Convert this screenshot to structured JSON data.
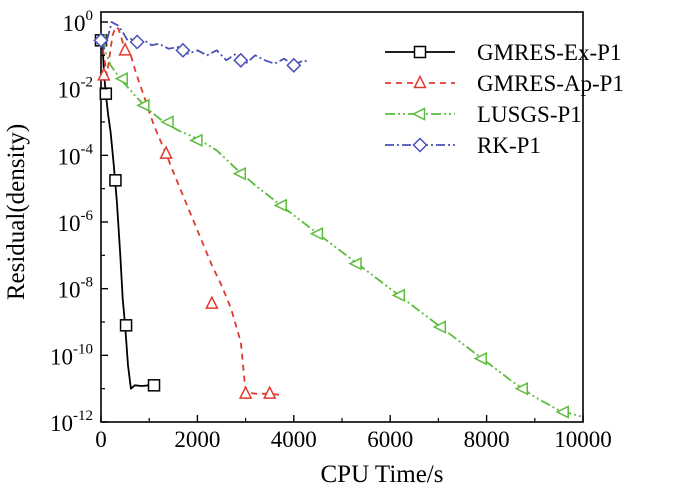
{
  "chart_data": {
    "type": "line",
    "title": "",
    "xlabel": "CPU Time/s",
    "ylabel": "Residual(density)",
    "xlim": [
      0,
      10000
    ],
    "ylim_log10": [
      -12,
      0.3
    ],
    "y_scale": "log",
    "legend_position": "top-right",
    "x_ticks": [
      {
        "value": 0,
        "label": "0"
      },
      {
        "value": 2000,
        "label": "2000"
      },
      {
        "value": 4000,
        "label": "4000"
      },
      {
        "value": 6000,
        "label": "6000"
      },
      {
        "value": 8000,
        "label": "8000"
      },
      {
        "value": 10000,
        "label": "10000"
      }
    ],
    "y_ticks": [
      {
        "exp": 0,
        "base": "10",
        "power": "0"
      },
      {
        "exp": -2,
        "base": "10",
        "power": "-2"
      },
      {
        "exp": -4,
        "base": "10",
        "power": "-4"
      },
      {
        "exp": -6,
        "base": "10",
        "power": "-6"
      },
      {
        "exp": -8,
        "base": "10",
        "power": "-8"
      },
      {
        "exp": -10,
        "base": "10",
        "power": "-10"
      },
      {
        "exp": -12,
        "base": "10",
        "power": "-12"
      }
    ],
    "series": [
      {
        "name": "GMRES-Ex-P1",
        "color": "#000000",
        "dash": "",
        "marker": "square",
        "x": [
          0,
          30,
          60,
          100,
          150,
          200,
          260,
          330,
          400,
          450,
          500,
          560,
          620,
          700,
          850,
          1000,
          1150
        ],
        "log10_y": [
          -0.55,
          -0.55,
          -1.5,
          -2.15,
          -2.8,
          -3.3,
          -4.2,
          -5.4,
          -7.0,
          -8.3,
          -9.1,
          -10.3,
          -11.0,
          -10.9,
          -10.92,
          -10.9,
          -10.92
        ],
        "marker_x": [
          0,
          100,
          300,
          520,
          1100
        ],
        "marker_log10_y": [
          -0.55,
          -2.15,
          -4.75,
          -9.1,
          -10.9
        ]
      },
      {
        "name": "GMRES-Ap-P1",
        "color": "#e03a2e",
        "dash": "6,5",
        "marker": "triangle-up",
        "x": [
          0,
          60,
          120,
          180,
          240,
          300,
          360,
          420,
          500,
          600,
          700,
          800,
          900,
          1000,
          1100,
          1200,
          1350,
          1500,
          1700,
          1900,
          2100,
          2300,
          2500,
          2700,
          2900,
          3000,
          3200,
          3500,
          3800
        ],
        "log10_y": [
          -0.5,
          -1.0,
          -1.6,
          -1.0,
          -0.4,
          -0.15,
          -0.2,
          -0.45,
          -0.85,
          -0.9,
          -1.4,
          -1.85,
          -2.25,
          -2.7,
          -3.1,
          -3.45,
          -3.95,
          -4.5,
          -5.2,
          -5.9,
          -6.6,
          -7.3,
          -7.9,
          -8.6,
          -9.6,
          -11.1,
          -11.15,
          -11.15,
          -11.2
        ],
        "marker_x": [
          60,
          500,
          1350,
          2300,
          3000,
          3500
        ],
        "marker_log10_y": [
          -1.6,
          -0.85,
          -3.95,
          -8.45,
          -11.15,
          -11.15
        ]
      },
      {
        "name": "LUSGS-P1",
        "color": "#5cbc3c",
        "dash": "10,3,2,3,2,3",
        "marker": "triangle-left",
        "x": [
          0,
          200,
          400,
          700,
          1000,
          1300,
          1600,
          2000,
          2400,
          2800,
          3200,
          3600,
          4000,
          4500,
          5000,
          5500,
          6000,
          6500,
          7000,
          7500,
          8000,
          8500,
          9000,
          9500,
          10000
        ],
        "log10_y": [
          -0.55,
          -1.3,
          -1.7,
          -2.2,
          -2.65,
          -3.0,
          -3.25,
          -3.5,
          -3.85,
          -4.4,
          -4.9,
          -5.35,
          -5.8,
          -6.35,
          -6.9,
          -7.45,
          -8.0,
          -8.55,
          -9.1,
          -9.65,
          -10.2,
          -10.75,
          -11.25,
          -11.65,
          -11.85
        ],
        "marker_x": [
          0,
          450,
          900,
          1400,
          2000,
          2900,
          3750,
          4500,
          5300,
          6200,
          7050,
          7900,
          8750,
          9600
        ],
        "marker_log10_y": [
          -0.55,
          -1.7,
          -2.5,
          -3.0,
          -3.55,
          -4.55,
          -5.5,
          -6.35,
          -7.25,
          -8.2,
          -9.15,
          -10.1,
          -11.0,
          -11.7
        ]
      },
      {
        "name": "RK-P1",
        "color": "#4a52b8",
        "dash": "9,3,2,3",
        "marker": "diamond",
        "x": [
          0,
          60,
          120,
          180,
          220,
          280,
          350,
          450,
          550,
          650,
          750,
          900,
          1050,
          1200,
          1400,
          1600,
          1800,
          2000,
          2200,
          2400,
          2600,
          2800,
          3000,
          3200,
          3400,
          3600,
          3800,
          4000,
          4200,
          4300
        ],
        "log10_y": [
          -0.6,
          -0.8,
          -0.55,
          -0.25,
          0.0,
          -0.05,
          -0.1,
          -0.3,
          -0.55,
          -0.5,
          -0.6,
          -0.55,
          -0.7,
          -0.65,
          -0.8,
          -0.75,
          -0.95,
          -0.85,
          -1.0,
          -0.85,
          -1.15,
          -0.95,
          -1.25,
          -1.0,
          -1.15,
          -1.25,
          -1.1,
          -1.3,
          -1.15,
          -1.2
        ],
        "marker_x": [
          0,
          750,
          1700,
          2900,
          4000
        ],
        "marker_log10_y": [
          -0.55,
          -0.6,
          -0.85,
          -1.15,
          -1.3
        ]
      }
    ]
  }
}
